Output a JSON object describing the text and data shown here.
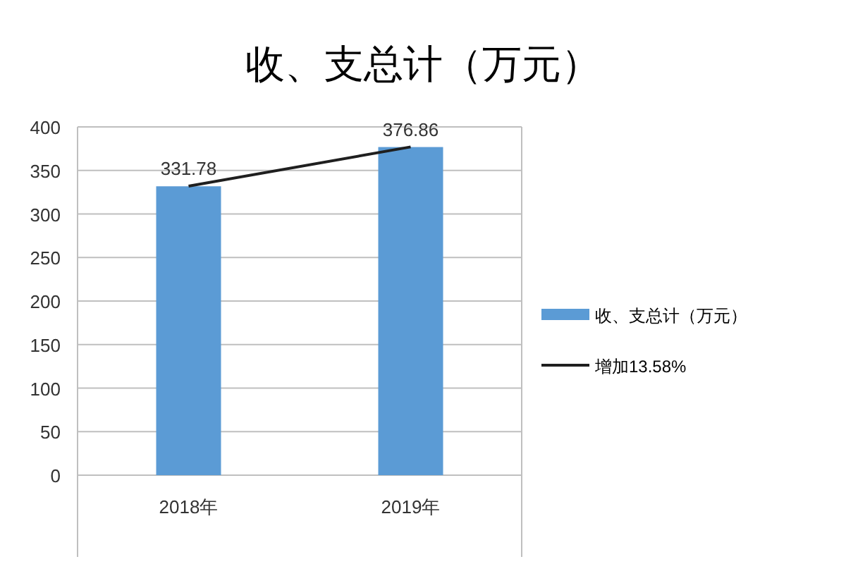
{
  "chart_data": {
    "type": "bar",
    "title": "收、支总计（万元）",
    "categories": [
      "2018年",
      "2019年"
    ],
    "series": [
      {
        "name": "收、支总计（万元）",
        "color": "#5b9bd5",
        "values": [
          331.78,
          376.86
        ],
        "value_labels": [
          "331.78",
          "376.86"
        ]
      },
      {
        "name": "增加13.58%",
        "type": "line",
        "color": "#1f1f1f",
        "values": [
          332,
          377
        ]
      }
    ],
    "ylim": [
      0,
      400
    ],
    "yticks": [
      0,
      50,
      100,
      150,
      200,
      250,
      300,
      350,
      400
    ],
    "grid": "y",
    "legend": "right"
  }
}
